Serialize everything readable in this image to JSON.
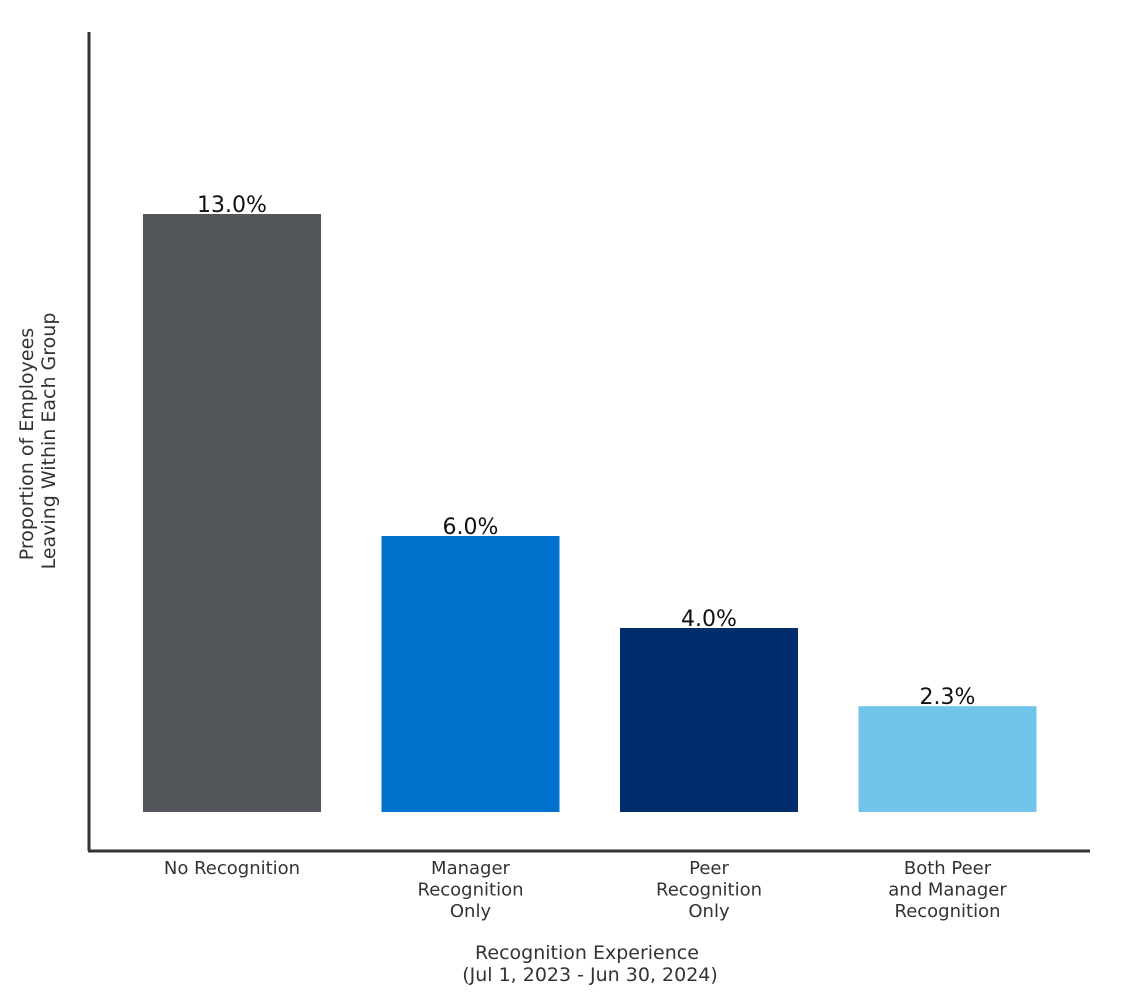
{
  "chart_data": {
    "type": "bar",
    "title": "",
    "xlabel": [
      "Recognition Experience",
      "(Jul 1, 2023 - Jun 30, 2024)"
    ],
    "ylabel": [
      "Proportion of Employees",
      "Leaving Within Each Group"
    ],
    "categories": [
      [
        "No Recognition"
      ],
      [
        "Manager",
        "Recognition",
        "Only"
      ],
      [
        "Peer",
        "Recognition",
        "Only"
      ],
      [
        "Both Peer",
        "and Manager",
        "Recognition"
      ]
    ],
    "values": [
      13.0,
      6.0,
      4.0,
      2.3
    ],
    "value_labels": [
      "13.0%",
      "6.0%",
      "4.0%",
      "2.3%"
    ],
    "colors": [
      "#53565a",
      "#0072ce",
      "#002d6e",
      "#71c5e8"
    ],
    "ylim": [
      0,
      16
    ],
    "y_ticks_shown": false,
    "grid": false,
    "legend": "none"
  }
}
